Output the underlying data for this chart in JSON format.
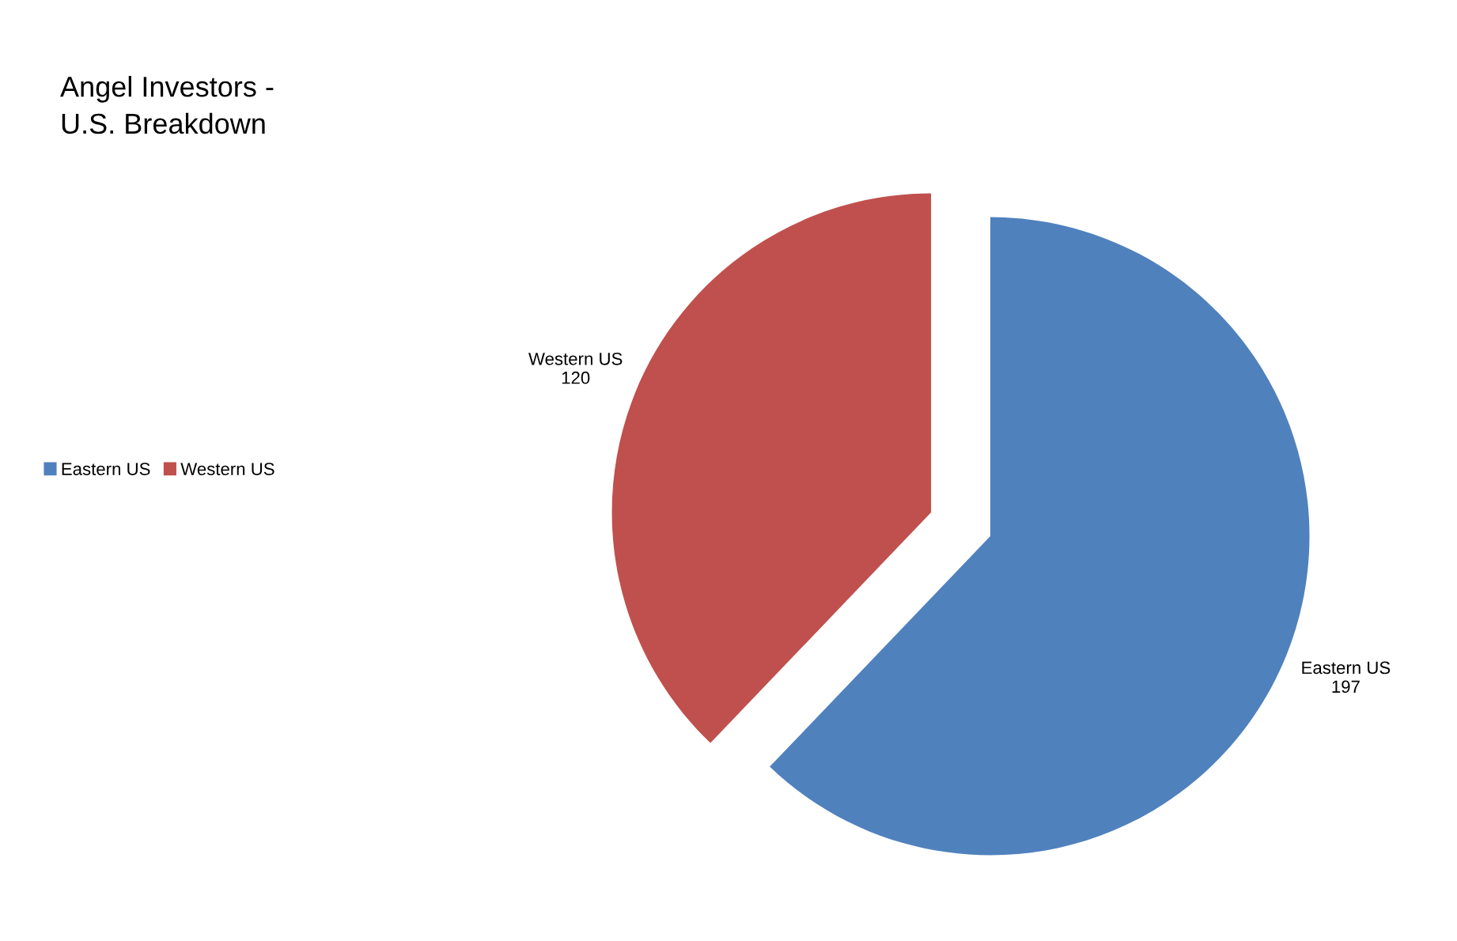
{
  "chart_data": {
    "type": "pie",
    "title": "Angel Investors -\nU.S. Breakdown",
    "categories": [
      "Eastern US",
      "Western US"
    ],
    "values": [
      197,
      120
    ],
    "colors": [
      "#4f81bd",
      "#c0504d"
    ],
    "data_labels": true,
    "legend": "left"
  }
}
